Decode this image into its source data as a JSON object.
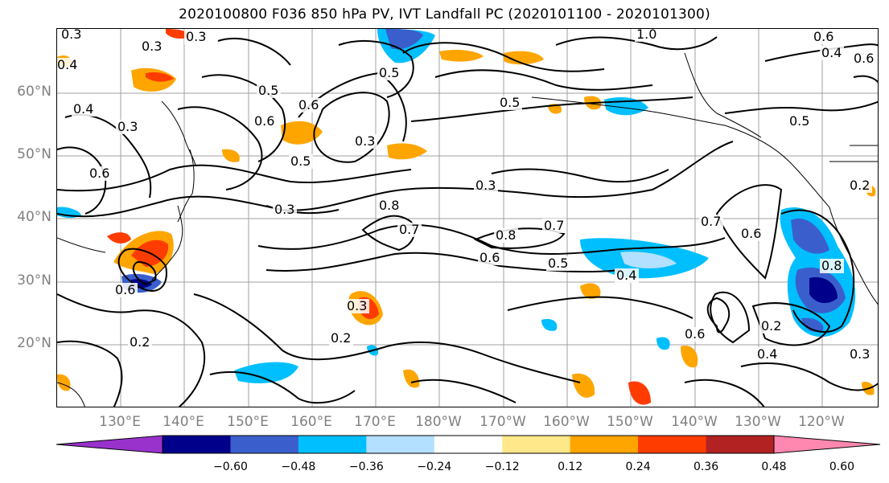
{
  "title": "2020100800 F036 850 hPa PV, IVT Landfall PC (2020101100 - 2020101300)",
  "map": {
    "lat_labels": [
      "60°N",
      "50°N",
      "40°N",
      "30°N",
      "20°N"
    ],
    "lon_labels": [
      "130°E",
      "140°E",
      "150°E",
      "160°E",
      "170°E",
      "180°W",
      "170°W",
      "160°W",
      "150°W",
      "140°W",
      "130°W",
      "120°W"
    ],
    "contour_labels": [
      "0.3",
      "0.3",
      "0.4",
      "0.3",
      "0.5",
      "0.6",
      "1.0",
      "0.6",
      "0.6",
      "0.5",
      "0.4",
      "0.5",
      "0.3",
      "0.5",
      "0.6",
      "0.5",
      "0.3",
      "0.3",
      "0.8",
      "0.7",
      "0.8",
      "0.6",
      "0.5",
      "0.7",
      "0.4",
      "0.7",
      "0.6",
      "0.6",
      "0.2",
      "0.6",
      "0.3",
      "0.2",
      "0.2",
      "0.2",
      "0.4",
      "0.3",
      "0.6",
      "0.4",
      "0.3",
      "0.8"
    ],
    "fill_colors": {
      "pos_low": "#ffe88a",
      "pos_mid": "#ffa500",
      "pos_high": "#ff3c00",
      "pos_max": "#b22222",
      "neg_low": "#b3e0ff",
      "neg_mid": "#00bfff",
      "neg_high": "#3a5fcd",
      "neg_max": "#00008b"
    }
  },
  "colorbar": {
    "ticks": [
      "−0.60",
      "−0.48",
      "−0.36",
      "−0.24",
      "−0.12",
      "0.12",
      "0.24",
      "0.36",
      "0.48",
      "0.60"
    ],
    "colors": [
      "#9932cc",
      "#00008b",
      "#3a5fcd",
      "#00bfff",
      "#b3e0ff",
      "#ffffff",
      "#ffe88a",
      "#ffa500",
      "#ff3c00",
      "#b22222",
      "#ff88b0"
    ]
  }
}
